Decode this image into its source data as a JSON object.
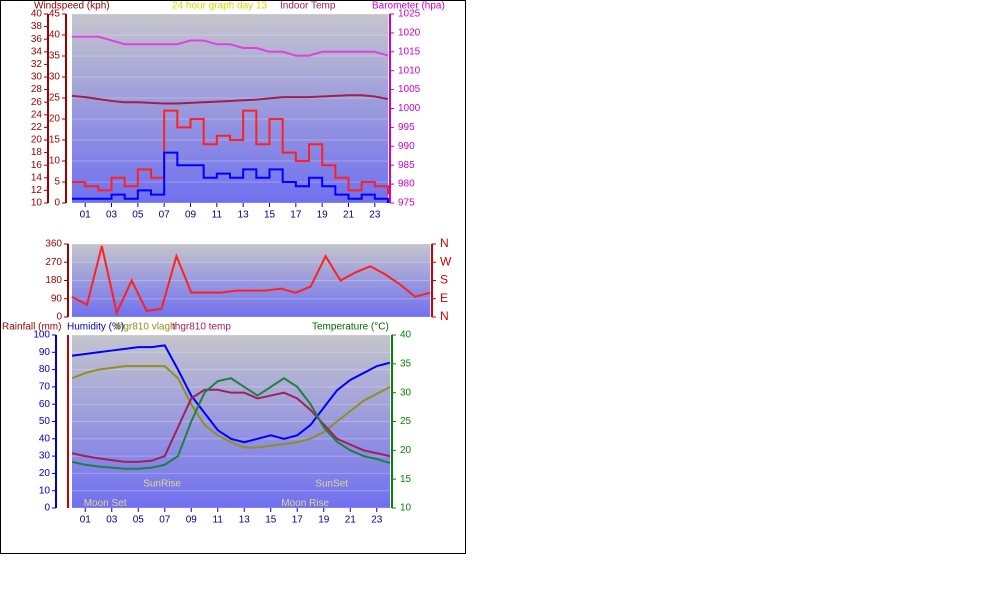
{
  "chart_data": [
    {
      "type": "line",
      "title": "24 hour graph day  13",
      "ylabel": "Windspeed (kph)",
      "y2label": "Barometer (hpa)",
      "x": [
        0,
        1,
        2,
        3,
        4,
        5,
        6,
        7,
        8,
        9,
        10,
        11,
        12,
        13,
        14,
        15,
        16,
        17,
        18,
        19,
        20,
        21,
        22,
        23,
        24
      ],
      "xlim": [
        0,
        24
      ],
      "xticks": [
        {
          "value": 1,
          "label": "01"
        },
        {
          "value": 3,
          "label": "03"
        },
        {
          "value": 5,
          "label": "05"
        },
        {
          "value": 7,
          "label": "07"
        },
        {
          "value": 9,
          "label": "09"
        },
        {
          "value": 11,
          "label": "11"
        },
        {
          "value": 13,
          "label": "13"
        },
        {
          "value": 15,
          "label": "15"
        },
        {
          "value": 17,
          "label": "17"
        },
        {
          "value": 19,
          "label": "19"
        },
        {
          "value": 21,
          "label": "21"
        },
        {
          "value": 23,
          "label": "23"
        }
      ],
      "ylim": [
        0,
        45
      ],
      "yticks": [
        0,
        5,
        10,
        15,
        20,
        25,
        30,
        35,
        40,
        45
      ],
      "y3lim": [
        10,
        40
      ],
      "y3ticks": [
        10,
        12,
        14,
        16,
        18,
        20,
        22,
        24,
        26,
        28,
        30,
        32,
        34,
        36,
        38,
        40
      ],
      "y2lim": [
        975,
        1025
      ],
      "y2ticks": [
        975,
        980,
        985,
        990,
        995,
        1000,
        1005,
        1010,
        1015,
        1020,
        1025
      ],
      "grid": true,
      "series": [
        {
          "color": "#ff2020",
          "step": true,
          "axis": "y",
          "values": [
            5,
            4,
            3,
            6,
            4,
            8,
            6,
            22,
            18,
            20,
            14,
            16,
            15,
            22,
            14,
            20,
            12,
            10,
            14,
            9,
            6,
            3,
            5,
            4,
            2
          ]
        },
        {
          "color": "#0000ff",
          "step": true,
          "axis": "y",
          "values": [
            1,
            1,
            1,
            2,
            1,
            3,
            2,
            12,
            9,
            9,
            6,
            7,
            6,
            8,
            6,
            8,
            5,
            4,
            6,
            4,
            2,
            1,
            2,
            1,
            0
          ]
        },
        {
          "color": "#e040e0",
          "axis": "y2",
          "values": [
            1019,
            1019,
            1019,
            1018,
            1017,
            1017,
            1017,
            1017,
            1017,
            1018,
            1018,
            1017,
            1017,
            1016,
            1016,
            1015,
            1015,
            1014,
            1014,
            1015,
            1015,
            1015,
            1015,
            1015,
            1014
          ]
        },
        {
          "name": "Indoor Temp",
          "color": "#a0204a",
          "axis": "y3",
          "values": [
            27,
            26.8,
            26.5,
            26.2,
            26,
            26,
            25.9,
            25.8,
            25.8,
            25.9,
            26,
            26.1,
            26.2,
            26.3,
            26.4,
            26.6,
            26.8,
            26.8,
            26.8,
            26.9,
            27,
            27.1,
            27.1,
            26.9,
            26.5
          ]
        }
      ]
    },
    {
      "type": "line",
      "x": [
        0,
        1,
        2,
        3,
        4,
        5,
        6,
        7,
        8,
        9,
        10,
        11,
        12,
        13,
        14,
        15,
        16,
        17,
        18,
        19,
        20,
        21,
        22,
        23,
        24
      ],
      "xlim": [
        0,
        24
      ],
      "ylim": [
        0,
        360
      ],
      "yticks": [
        0,
        90,
        180,
        270,
        360
      ],
      "y2lim": [
        0,
        360
      ],
      "y2ticks": [
        {
          "value": 0,
          "label": "N"
        },
        {
          "value": 90,
          "label": "E"
        },
        {
          "value": 180,
          "label": "S"
        },
        {
          "value": 270,
          "label": "W"
        },
        {
          "value": 360,
          "label": "N"
        }
      ],
      "grid": true,
      "series": [
        {
          "color": "#ff2020",
          "axis": "y",
          "values": [
            100,
            60,
            350,
            20,
            180,
            30,
            40,
            300,
            120,
            120,
            120,
            130,
            130,
            130,
            140,
            120,
            150,
            300,
            180,
            220,
            250,
            210,
            160,
            100,
            120
          ]
        }
      ]
    },
    {
      "type": "line",
      "ylabel": "Humidity (%)",
      "y2label": "Temperature (°C)",
      "rainfall_label": "Rainfall (mm)",
      "x": [
        0,
        1,
        2,
        3,
        4,
        5,
        6,
        7,
        8,
        9,
        10,
        11,
        12,
        13,
        14,
        15,
        16,
        17,
        18,
        19,
        20,
        21,
        22,
        23,
        24
      ],
      "xlim": [
        0,
        24
      ],
      "xticks": [
        {
          "value": 1,
          "label": "01"
        },
        {
          "value": 3,
          "label": "03"
        },
        {
          "value": 5,
          "label": "05"
        },
        {
          "value": 7,
          "label": "07"
        },
        {
          "value": 9,
          "label": "09"
        },
        {
          "value": 11,
          "label": "11"
        },
        {
          "value": 13,
          "label": "13"
        },
        {
          "value": 15,
          "label": "15"
        },
        {
          "value": 17,
          "label": "17"
        },
        {
          "value": 19,
          "label": "19"
        },
        {
          "value": 21,
          "label": "21"
        },
        {
          "value": 23,
          "label": "23"
        }
      ],
      "ylim": [
        0,
        100
      ],
      "yticks": [
        0,
        10,
        20,
        30,
        40,
        50,
        60,
        70,
        80,
        90,
        100
      ],
      "y2lim": [
        10,
        40
      ],
      "y2ticks": [
        10,
        15,
        20,
        25,
        30,
        35,
        40
      ],
      "grid": true,
      "series": [
        {
          "color": "#0000ff",
          "axis": "y",
          "values": [
            88,
            89,
            90,
            91,
            92,
            93,
            93,
            94,
            80,
            65,
            55,
            45,
            40,
            38,
            40,
            42,
            40,
            42,
            48,
            58,
            68,
            74,
            78,
            82,
            84
          ]
        },
        {
          "name": "thgr810 vlagh",
          "color": "#909020",
          "axis": "y",
          "values": [
            75,
            78,
            80,
            81,
            82,
            82,
            82,
            82,
            75,
            60,
            48,
            42,
            38,
            35,
            35,
            36,
            37,
            38,
            40,
            44,
            50,
            56,
            62,
            66,
            70
          ]
        },
        {
          "name": "thgr810 temp",
          "color": "#a0205a",
          "axis": "y2",
          "values": [
            19.5,
            19,
            18.6,
            18.3,
            18,
            18,
            18.2,
            19,
            24,
            29,
            30.5,
            30.5,
            30,
            30,
            29,
            29.5,
            30,
            29,
            27,
            24.5,
            22,
            21,
            20,
            19.5,
            19
          ]
        },
        {
          "color": "#208040",
          "axis": "y2",
          "values": [
            18,
            17.5,
            17.2,
            17,
            16.8,
            16.8,
            17,
            17.5,
            19,
            25,
            30,
            32,
            32.5,
            31,
            29.5,
            31,
            32.5,
            31,
            28,
            24,
            21.5,
            20,
            19,
            18.5,
            17.8
          ]
        }
      ],
      "annotations": [
        {
          "text": "SunRise",
          "x": 6.8,
          "y": 11.5
        },
        {
          "text": "SunSet",
          "x": 19.6,
          "y": 11.5
        },
        {
          "text": "Moon Set",
          "x": 2.5,
          "y": 0.5
        },
        {
          "text": "Moon Rise",
          "x": 17.6,
          "y": 0.5
        }
      ]
    }
  ]
}
